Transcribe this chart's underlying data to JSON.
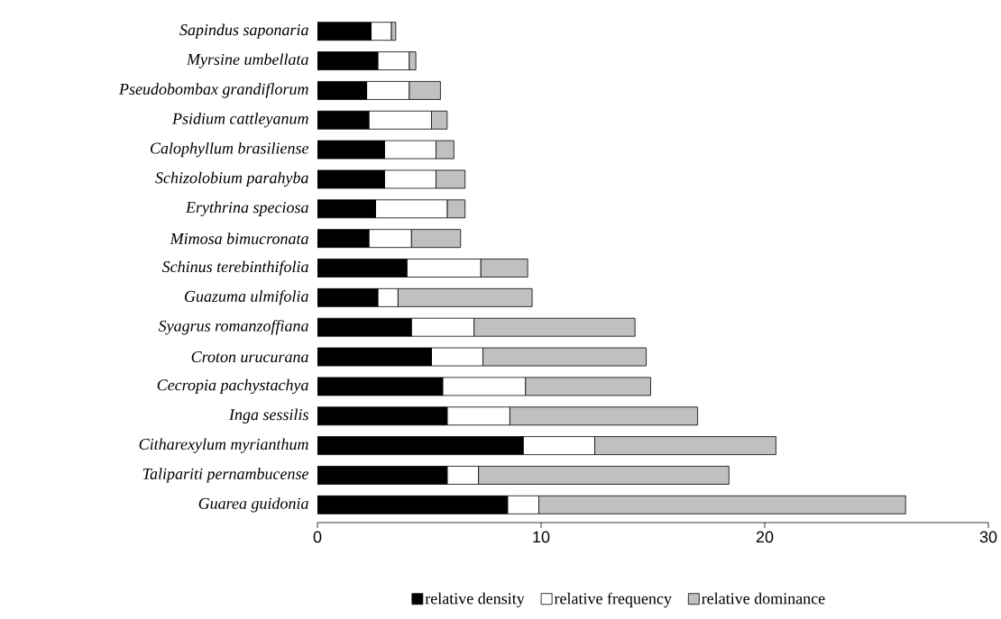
{
  "chart_data": {
    "type": "bar",
    "orientation": "horizontal",
    "stacked": true,
    "categories": [
      "Sapindus saponaria",
      "Myrsine umbellata",
      "Pseudobombax grandiflorum",
      "Psidium cattleyanum",
      "Calophyllum brasiliense",
      "Schizolobium parahyba",
      "Erythrina speciosa",
      "Mimosa bimucronata",
      "Schinus terebinthifolia",
      "Guazuma ulmifolia",
      "Syagrus romanzoffiana",
      "Croton urucurana",
      "Cecropia pachystachya",
      "Inga sessilis",
      "Citharexylum myrianthum",
      "Talipariti pernambucense",
      "Guarea guidonia"
    ],
    "series": [
      {
        "name": "relative density",
        "color": "#000000",
        "values": [
          2.4,
          2.7,
          2.2,
          2.3,
          3.0,
          3.0,
          2.6,
          2.3,
          4.0,
          2.7,
          4.2,
          5.1,
          5.6,
          5.8,
          9.2,
          5.8,
          8.5
        ]
      },
      {
        "name": "relative frequency",
        "color": "#ffffff",
        "values": [
          0.9,
          1.4,
          1.9,
          2.8,
          2.3,
          2.3,
          3.2,
          1.9,
          3.3,
          0.9,
          2.8,
          2.3,
          3.7,
          2.8,
          3.2,
          1.4,
          1.4
        ]
      },
      {
        "name": "relative dominance",
        "color": "#c0c0c0",
        "values": [
          0.2,
          0.3,
          1.4,
          0.7,
          0.8,
          1.3,
          0.8,
          2.2,
          2.1,
          6.0,
          7.2,
          7.3,
          5.6,
          8.4,
          8.1,
          11.2,
          16.4
        ]
      }
    ],
    "xlim": [
      0,
      30
    ],
    "xticks": [
      0,
      10,
      20,
      30
    ],
    "legend": "bottom",
    "grid": false
  }
}
